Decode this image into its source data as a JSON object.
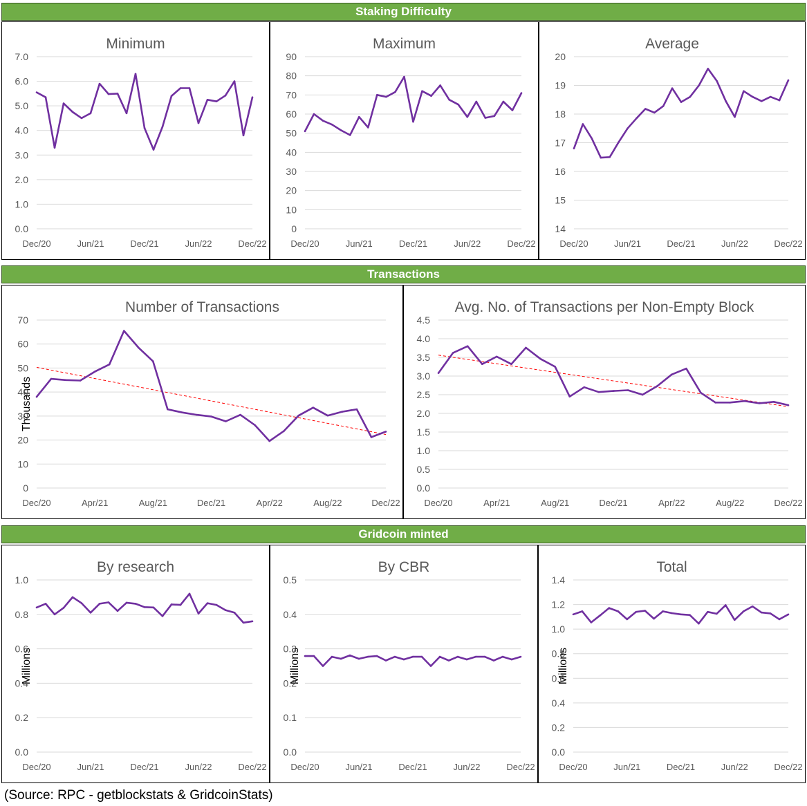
{
  "sections": {
    "staking": "Staking Difficulty",
    "transactions": "Transactions",
    "minted": "Gridcoin minted"
  },
  "source": "(Source: RPC - getblockstats & GridcoinStats)",
  "colors": {
    "line": "#7030a0",
    "trend": "#ff0000",
    "grid": "#d9d9d9",
    "banner": "#70ad47",
    "text": "#595959"
  },
  "chart_data": [
    {
      "id": "min",
      "type": "line",
      "title": "Minimum",
      "ylabel": "",
      "ylim": [
        0,
        7
      ],
      "yticks": [
        0,
        1,
        2,
        3,
        4,
        5,
        6,
        7
      ],
      "ydecimals": 1,
      "xlabels": [
        "Dec/20",
        "Jun/21",
        "Dec/21",
        "Jun/22",
        "Dec/22"
      ],
      "xspan": 24,
      "values": [
        5.55,
        5.35,
        3.3,
        5.1,
        4.75,
        4.5,
        4.7,
        5.9,
        5.48,
        5.5,
        4.7,
        6.3,
        4.1,
        3.22,
        4.15,
        5.4,
        5.72,
        5.72,
        4.3,
        5.25,
        5.18,
        5.42,
        6.0,
        3.8,
        5.35
      ]
    },
    {
      "id": "max",
      "type": "line",
      "title": "Maximum",
      "ylabel": "",
      "ylim": [
        0,
        90
      ],
      "yticks": [
        0,
        10,
        20,
        30,
        40,
        50,
        60,
        70,
        80,
        90
      ],
      "ydecimals": 0,
      "xlabels": [
        "Dec/20",
        "Jun/21",
        "Dec/21",
        "Jun/22",
        "Dec/22"
      ],
      "xspan": 24,
      "values": [
        51,
        60,
        56.5,
        54.5,
        51.5,
        49,
        58.5,
        53,
        70,
        69,
        71.5,
        79.5,
        56,
        72,
        69.5,
        75,
        67.5,
        65,
        58.5,
        66.5,
        58,
        59,
        66.5,
        62,
        71
      ]
    },
    {
      "id": "avg",
      "type": "line",
      "title": "Average",
      "ylabel": "",
      "ylim": [
        14,
        20
      ],
      "yticks": [
        14,
        15,
        16,
        17,
        18,
        19,
        20
      ],
      "ydecimals": 0,
      "xlabels": [
        "Dec/20",
        "Jun/21",
        "Dec/21",
        "Jun/22",
        "Dec/22"
      ],
      "xspan": 24,
      "values": [
        16.8,
        17.65,
        17.15,
        16.48,
        16.5,
        17.02,
        17.5,
        17.85,
        18.18,
        18.05,
        18.28,
        18.9,
        18.42,
        18.6,
        19.0,
        19.58,
        19.15,
        18.45,
        17.9,
        18.8,
        18.6,
        18.45,
        18.6,
        18.48,
        19.18
      ]
    },
    {
      "id": "ntx",
      "type": "line",
      "title": "Number of Transactions",
      "ylabel": "Thousands",
      "ylim": [
        0,
        70
      ],
      "yticks": [
        0,
        10,
        20,
        30,
        40,
        50,
        60,
        70
      ],
      "ydecimals": 0,
      "xlabels": [
        "Dec/20",
        "Apr/21",
        "Aug/21",
        "Dec/21",
        "Apr/22",
        "Aug/22",
        "Dec/22"
      ],
      "xspan": 24,
      "values": [
        38,
        45.5,
        45,
        44.8,
        48.5,
        51.5,
        65.5,
        58.5,
        52.8,
        32.8,
        31.5,
        30.5,
        29.8,
        27.8,
        30.5,
        26.2,
        19.6,
        23.8,
        30.2,
        33.5,
        30.2,
        31.8,
        32.8,
        21.2,
        23.5
      ],
      "trend": [
        50.3,
        22.3
      ]
    },
    {
      "id": "avgtx",
      "type": "line",
      "title": "Avg. No. of Transactions per Non-Empty Block",
      "ylabel": "",
      "ylim": [
        0,
        4.5
      ],
      "yticks": [
        0,
        0.5,
        1,
        1.5,
        2,
        2.5,
        3,
        3.5,
        4,
        4.5
      ],
      "ydecimals": 1,
      "xlabels": [
        "Dec/20",
        "Apr/21",
        "Aug/21",
        "Dec/21",
        "Apr/22",
        "Aug/22",
        "Dec/22"
      ],
      "xspan": 24,
      "values": [
        3.08,
        3.62,
        3.8,
        3.32,
        3.52,
        3.32,
        3.76,
        3.46,
        3.25,
        2.45,
        2.7,
        2.57,
        2.6,
        2.62,
        2.5,
        2.73,
        3.04,
        3.2,
        2.55,
        2.29,
        2.29,
        2.33,
        2.27,
        2.31,
        2.22
      ],
      "trend": [
        3.56,
        2.18
      ]
    },
    {
      "id": "research",
      "type": "line",
      "title": "By research",
      "ylabel": "Millions",
      "ylim": [
        0,
        1.0
      ],
      "yticks": [
        0,
        0.2,
        0.4,
        0.6,
        0.8,
        1.0
      ],
      "ydecimals": 1,
      "xlabels": [
        "Dec/20",
        "Jun/21",
        "Dec/21",
        "Jun/22",
        "Dec/22"
      ],
      "xspan": 24,
      "values": [
        0.84,
        0.862,
        0.8,
        0.838,
        0.9,
        0.865,
        0.81,
        0.862,
        0.87,
        0.82,
        0.868,
        0.862,
        0.842,
        0.84,
        0.79,
        0.858,
        0.855,
        0.92,
        0.805,
        0.865,
        0.855,
        0.825,
        0.81,
        0.752,
        0.76
      ]
    },
    {
      "id": "cbr",
      "type": "line",
      "title": "By CBR",
      "ylabel": "Millions",
      "ylim": [
        0,
        0.5
      ],
      "yticks": [
        0,
        0.1,
        0.2,
        0.3,
        0.4,
        0.5
      ],
      "ydecimals": 1,
      "xlabels": [
        "Dec/20",
        "Jun/21",
        "Dec/21",
        "Jun/22",
        "Dec/22"
      ],
      "xspan": 24,
      "values": [
        0.279,
        0.279,
        0.25,
        0.277,
        0.271,
        0.281,
        0.271,
        0.277,
        0.279,
        0.266,
        0.277,
        0.269,
        0.277,
        0.277,
        0.25,
        0.277,
        0.266,
        0.277,
        0.269,
        0.277,
        0.277,
        0.266,
        0.277,
        0.269,
        0.277
      ]
    },
    {
      "id": "total",
      "type": "line",
      "title": "Total",
      "ylabel": "Millions",
      "ylim": [
        0,
        1.4
      ],
      "yticks": [
        0,
        0.2,
        0.4,
        0.6,
        0.8,
        1.0,
        1.2,
        1.4
      ],
      "ydecimals": 1,
      "xlabels": [
        "Dec/20",
        "Jun/21",
        "Dec/21",
        "Jun/22",
        "Dec/22"
      ],
      "xspan": 24,
      "values": [
        1.12,
        1.145,
        1.055,
        1.112,
        1.172,
        1.145,
        1.08,
        1.14,
        1.15,
        1.085,
        1.145,
        1.13,
        1.12,
        1.115,
        1.045,
        1.14,
        1.125,
        1.195,
        1.075,
        1.145,
        1.185,
        1.135,
        1.128,
        1.08,
        1.12
      ]
    }
  ]
}
